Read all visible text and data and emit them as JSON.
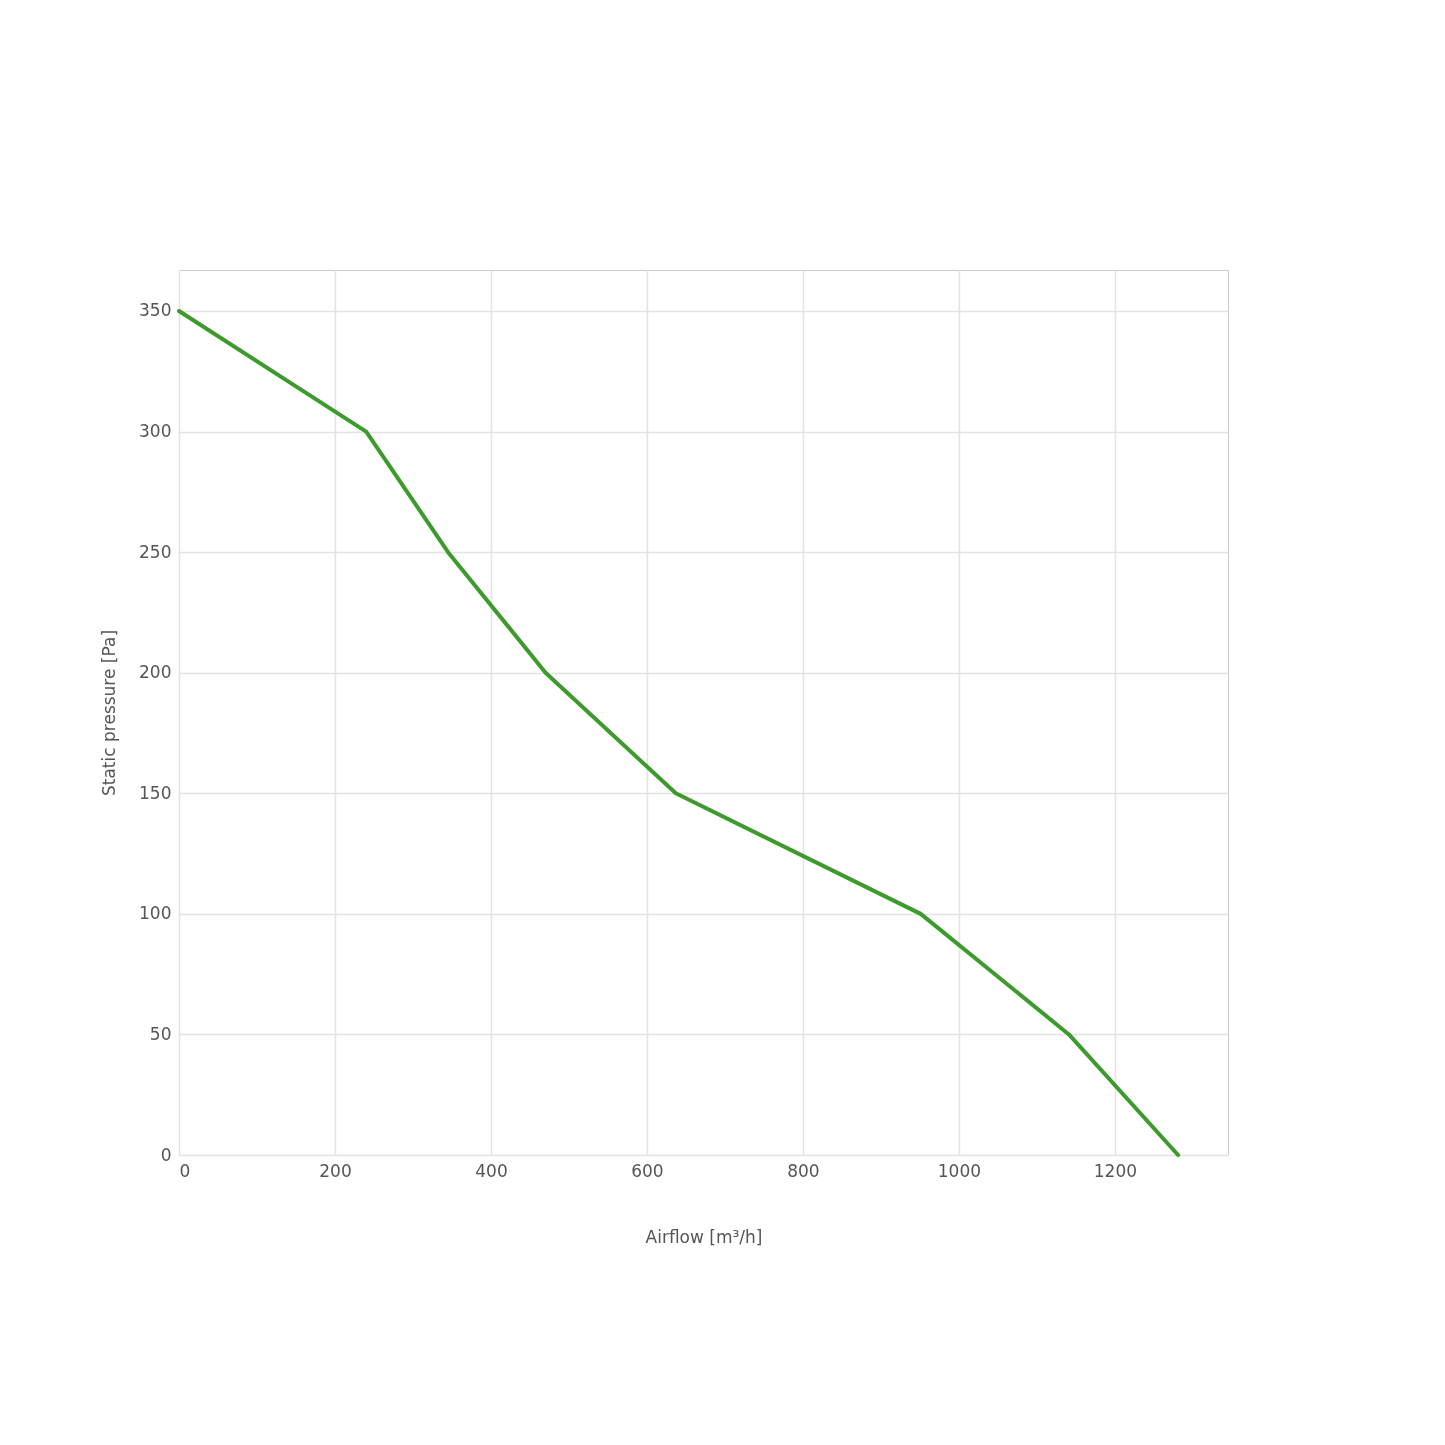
{
  "chart_data": {
    "type": "line",
    "xlabel": "Airflow [m³/h]",
    "ylabel": "Static pressure [Pa]",
    "x": [
      0,
      240,
      345,
      470,
      637,
      951,
      1141,
      1281
    ],
    "series": [
      {
        "color": "#3d9a2c",
        "values": [
          350,
          300,
          250,
          200,
          150,
          100,
          50,
          0
        ]
      }
    ],
    "xlim": [
      0,
      1345
    ],
    "ylim": [
      0,
      367
    ],
    "xticks": [
      0,
      200,
      400,
      600,
      800,
      1000,
      1200
    ],
    "yticks": [
      0,
      50,
      100,
      150,
      200,
      250,
      300,
      350
    ],
    "grid": true,
    "marker": "none",
    "line_style": "solid"
  }
}
